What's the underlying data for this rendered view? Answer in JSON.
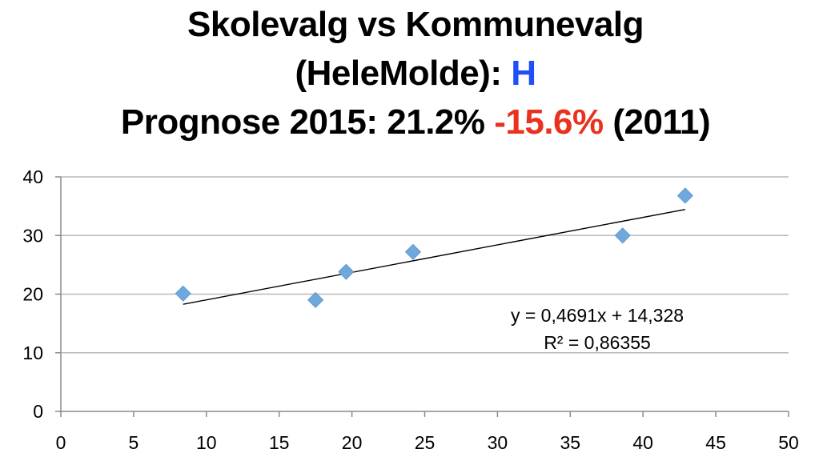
{
  "chart_data": {
    "type": "scatter",
    "title": {
      "line1": "Skolevalg vs Kommunevalg",
      "line2_prefix": "(HeleMolde): ",
      "line2_party": "H",
      "line3_prefix": "Prognose 2015: 21.2% ",
      "line3_change": "-15.6%",
      "line3_suffix": " (2011)"
    },
    "colors": {
      "party": "#1f4ff7",
      "change": "#e8321d",
      "points": "#6fa8dc",
      "trendline": "#000000",
      "gridlines": "#b8b8b8"
    },
    "xlim": [
      0,
      50
    ],
    "ylim": [
      0,
      40
    ],
    "x_ticks": [
      0,
      5,
      10,
      15,
      20,
      25,
      30,
      35,
      40,
      45,
      50
    ],
    "y_ticks": [
      0,
      10,
      20,
      30,
      40
    ],
    "grid": true,
    "points": [
      {
        "x": 8.4,
        "y": 20.1
      },
      {
        "x": 17.5,
        "y": 19.0
      },
      {
        "x": 19.6,
        "y": 23.8
      },
      {
        "x": 24.2,
        "y": 27.2
      },
      {
        "x": 38.6,
        "y": 30.0
      },
      {
        "x": 42.9,
        "y": 36.8
      }
    ],
    "trendline": {
      "slope": 0.4691,
      "intercept": 14.328,
      "x_range": [
        8.4,
        42.9
      ],
      "equation": "y = 0,4691x + 14,328",
      "r_squared": "R² = 0,86355"
    }
  }
}
